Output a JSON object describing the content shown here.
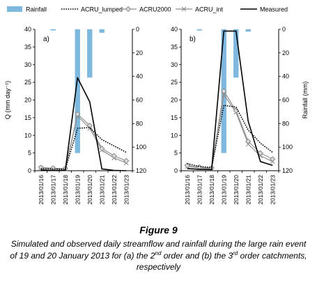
{
  "legend": [
    {
      "name": "Rainfall",
      "style": "bar",
      "color": "#7fb8df"
    },
    {
      "name": "ACRU_lumped",
      "style": "dotted",
      "color": "#000000"
    },
    {
      "name": "ACRU2000",
      "style": "diamond",
      "color": "#909090"
    },
    {
      "name": "ACRU_int",
      "style": "cross",
      "color": "#909090"
    },
    {
      "name": "Measured",
      "style": "solid",
      "color": "#000000"
    }
  ],
  "figure": {
    "title": "Figure 9",
    "caption_parts": [
      "Simulated and observed daily streamflow and rainfall during the large rain event of 19 and 20 January 2013 for (a) the 2",
      "nd",
      " order and (b) the 3",
      "rd",
      " order catchments, respectively"
    ]
  },
  "chart_data": [
    {
      "type": "line",
      "panel_label": "a)",
      "categories": [
        "2013/01/16",
        "2013/01/17",
        "2013/01/18",
        "2013/01/19",
        "2013/01/20",
        "2013/01/21",
        "2013/01/22",
        "2013/01/23"
      ],
      "ylabel": "Q (mm day⁻¹)",
      "ylim": [
        0,
        40
      ],
      "yticks": [
        0,
        5,
        10,
        15,
        20,
        25,
        30,
        35,
        40
      ],
      "y2label": "",
      "y2lim": [
        0,
        120
      ],
      "y2ticks": [
        0,
        20,
        40,
        60,
        80,
        100,
        120
      ],
      "y2_inverted": true,
      "grid": false,
      "series": [
        {
          "name": "Rainfall",
          "kind": "bar",
          "axis": "y2",
          "values": [
            0,
            1,
            0,
            105,
            41,
            3,
            0,
            0
          ]
        },
        {
          "name": "ACRU_lumped",
          "kind": "line",
          "axis": "y",
          "values": [
            0.6,
            0.5,
            0.4,
            12.0,
            12.2,
            8.8,
            7.0,
            5.2
          ]
        },
        {
          "name": "ACRU2000",
          "kind": "line",
          "axis": "y",
          "values": [
            0.9,
            0.7,
            0.6,
            16.0,
            12.8,
            6.3,
            4.2,
            2.8
          ]
        },
        {
          "name": "ACRU_int",
          "kind": "line",
          "axis": "y",
          "values": [
            0.8,
            0.6,
            0.5,
            15.5,
            12.0,
            5.8,
            3.6,
            2.2
          ]
        },
        {
          "name": "Measured",
          "kind": "line",
          "axis": "y",
          "values": [
            0.2,
            0.1,
            0.1,
            26.3,
            19.5,
            0.5,
            0.1,
            0.0
          ]
        }
      ]
    },
    {
      "type": "line",
      "panel_label": "b)",
      "categories": [
        "2013/01/16",
        "2013/01/17",
        "2013/01/18",
        "2013/01/19",
        "2013/01/20",
        "2013/01/21",
        "2013/01/22",
        "2013/01/23"
      ],
      "ylabel": "",
      "ylim": [
        0,
        40
      ],
      "yticks": [
        0,
        5,
        10,
        15,
        20,
        25,
        30,
        35,
        40
      ],
      "y2label": "Rainfall (mm)",
      "y2lim": [
        0,
        120
      ],
      "y2ticks": [
        0,
        20,
        40,
        60,
        80,
        100,
        120
      ],
      "y2_inverted": true,
      "grid": false,
      "series": [
        {
          "name": "Rainfall",
          "kind": "bar",
          "axis": "y2",
          "values": [
            0,
            1,
            0,
            105,
            41,
            2,
            0,
            0
          ]
        },
        {
          "name": "ACRU_lumped",
          "kind": "line",
          "axis": "y",
          "values": [
            2.0,
            1.2,
            0.9,
            18.5,
            18.0,
            11.5,
            7.8,
            5.2
          ]
        },
        {
          "name": "ACRU2000",
          "kind": "line",
          "axis": "y",
          "values": [
            1.5,
            1.0,
            0.8,
            22.5,
            17.0,
            8.3,
            5.0,
            3.3
          ]
        },
        {
          "name": "ACRU_int",
          "kind": "line",
          "axis": "y",
          "values": [
            1.2,
            0.8,
            0.6,
            21.5,
            16.5,
            7.5,
            4.2,
            2.6
          ]
        },
        {
          "name": "Measured",
          "kind": "line",
          "axis": "y",
          "values": [
            0.6,
            0.4,
            0.3,
            39.5,
            39.5,
            14.0,
            2.6,
            1.5
          ]
        }
      ]
    }
  ]
}
